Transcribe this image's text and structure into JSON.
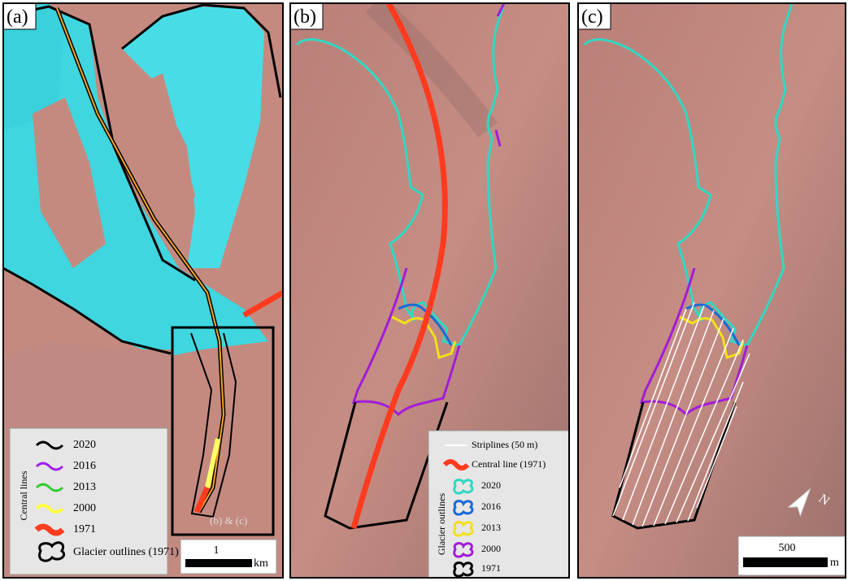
{
  "panels": [
    {
      "label": "(a)",
      "legend": {
        "title": "Central lines",
        "items": [
          "2020",
          "2016",
          "2013",
          "2000",
          "1971"
        ],
        "outline": "Glacier outlines (1971)"
      },
      "inset_label": "(b) & (c)",
      "scale_bar": {
        "value": "1",
        "unit": "km"
      }
    },
    {
      "label": "(b)",
      "legend": {
        "stripline": "Striplines (50 m)",
        "central": "Central line (1971)",
        "title": "Glacier outlines",
        "items": [
          "2020",
          "2016",
          "2013",
          "2000",
          "1971"
        ]
      }
    },
    {
      "label": "(c)",
      "scale_bar": {
        "value": "500",
        "unit": "m"
      },
      "north": "N"
    }
  ]
}
